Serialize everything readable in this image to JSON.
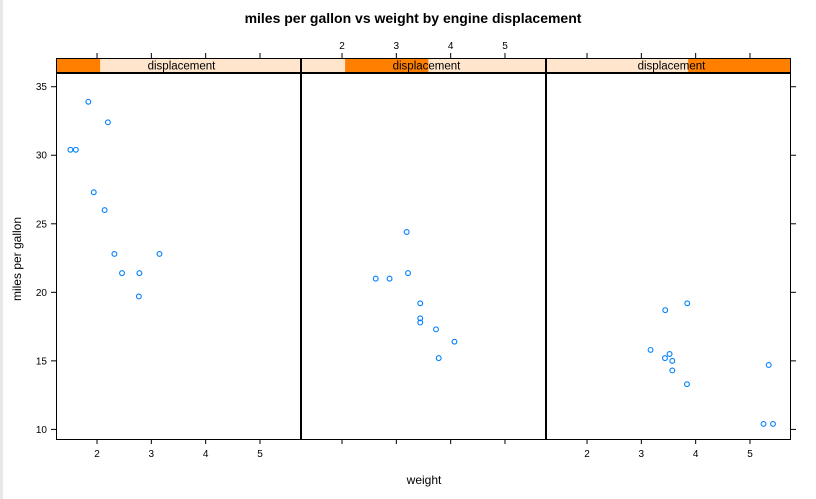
{
  "chart_data": {
    "type": "scatter",
    "layout": "trellis",
    "title": "miles per gallon vs weight by engine displacement",
    "xlabel": "weight",
    "ylabel": "miles per gallon",
    "xlim": [
      1.3,
      5.7
    ],
    "ylim": [
      9.3,
      36.0
    ],
    "x_ticks": [
      2,
      3,
      4,
      5
    ],
    "y_ticks": [
      10,
      15,
      20,
      25,
      30,
      35
    ],
    "grid": false,
    "legend": "none",
    "colors": {
      "points": "#0080ff",
      "strip_bg": "#ffe5cc",
      "strip_fill": "#ff7f00",
      "frame": "#000000"
    },
    "panels": [
      {
        "strip_label": "displacement",
        "strip_range": [
          0.0,
          0.18
        ],
        "points": [
          {
            "x": 1.51,
            "y": 30.4
          },
          {
            "x": 1.61,
            "y": 30.4
          },
          {
            "x": 1.84,
            "y": 33.9
          },
          {
            "x": 1.94,
            "y": 27.3
          },
          {
            "x": 2.14,
            "y": 26.0
          },
          {
            "x": 2.2,
            "y": 32.4
          },
          {
            "x": 2.32,
            "y": 22.8
          },
          {
            "x": 2.46,
            "y": 21.4
          },
          {
            "x": 2.78,
            "y": 21.4
          },
          {
            "x": 2.77,
            "y": 19.7
          },
          {
            "x": 3.15,
            "y": 22.8
          }
        ]
      },
      {
        "strip_label": "displacement",
        "strip_range": [
          0.18,
          0.52
        ],
        "points": [
          {
            "x": 2.62,
            "y": 21.0
          },
          {
            "x": 2.875,
            "y": 21.0
          },
          {
            "x": 3.19,
            "y": 24.4
          },
          {
            "x": 3.215,
            "y": 21.4
          },
          {
            "x": 3.44,
            "y": 19.2
          },
          {
            "x": 3.44,
            "y": 17.8
          },
          {
            "x": 3.44,
            "y": 18.1
          },
          {
            "x": 3.73,
            "y": 17.3
          },
          {
            "x": 3.78,
            "y": 15.2
          },
          {
            "x": 4.07,
            "y": 16.4
          }
        ]
      },
      {
        "strip_label": "displacement",
        "strip_range": [
          0.58,
          1.0
        ],
        "points": [
          {
            "x": 3.17,
            "y": 15.8
          },
          {
            "x": 3.435,
            "y": 15.2
          },
          {
            "x": 3.44,
            "y": 18.7
          },
          {
            "x": 3.52,
            "y": 15.5
          },
          {
            "x": 3.57,
            "y": 15.0
          },
          {
            "x": 3.57,
            "y": 14.3
          },
          {
            "x": 3.84,
            "y": 13.3
          },
          {
            "x": 3.845,
            "y": 19.2
          },
          {
            "x": 5.25,
            "y": 10.4
          },
          {
            "x": 5.345,
            "y": 14.7
          },
          {
            "x": 5.424,
            "y": 10.4
          }
        ]
      }
    ]
  }
}
